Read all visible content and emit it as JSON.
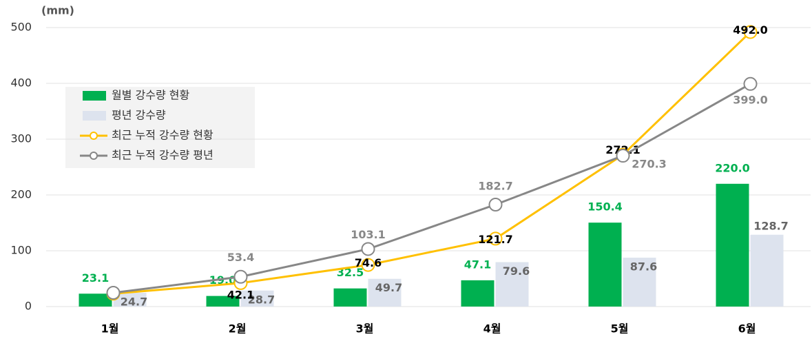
{
  "chart_data": {
    "type": "bar-line",
    "unit_label": "(mm)",
    "categories": [
      "1월",
      "2월",
      "3월",
      "4월",
      "5월",
      "6월"
    ],
    "ylim": [
      0,
      500
    ],
    "yticks": [
      0,
      100,
      200,
      300,
      400,
      500
    ],
    "grid": true,
    "legend": "upper left",
    "series": [
      {
        "name": "월별 강수량 현황",
        "type": "bar",
        "color": "#00b050",
        "values": [
          23.1,
          19.0,
          32.5,
          47.1,
          150.4,
          220.0
        ],
        "value_labels": [
          "23.1",
          "19.0",
          "32.5",
          "47.1",
          "150.4",
          "220.0"
        ]
      },
      {
        "name": "평년 강수량",
        "type": "bar",
        "color": "#dde3ee",
        "values": [
          24.7,
          28.7,
          49.7,
          79.6,
          87.6,
          128.7
        ],
        "value_labels": [
          "24.7",
          "28.7",
          "49.7",
          "79.6",
          "87.6",
          "128.7"
        ]
      },
      {
        "name": "최근 누적 강수량 현황",
        "type": "line",
        "color": "#ffc000",
        "values": [
          23.1,
          42.1,
          74.6,
          121.7,
          272.1,
          492.0
        ],
        "value_labels": [
          null,
          "42.1",
          "74.6",
          "121.7",
          "272.1",
          "492.0"
        ]
      },
      {
        "name": "최근 누적 강수량 평년",
        "type": "line",
        "color": "#878787",
        "values": [
          24.7,
          53.4,
          103.1,
          182.7,
          270.3,
          399.0
        ],
        "value_labels": [
          null,
          "53.4",
          "103.1",
          "182.7",
          "270.3",
          "399.0"
        ]
      }
    ]
  }
}
